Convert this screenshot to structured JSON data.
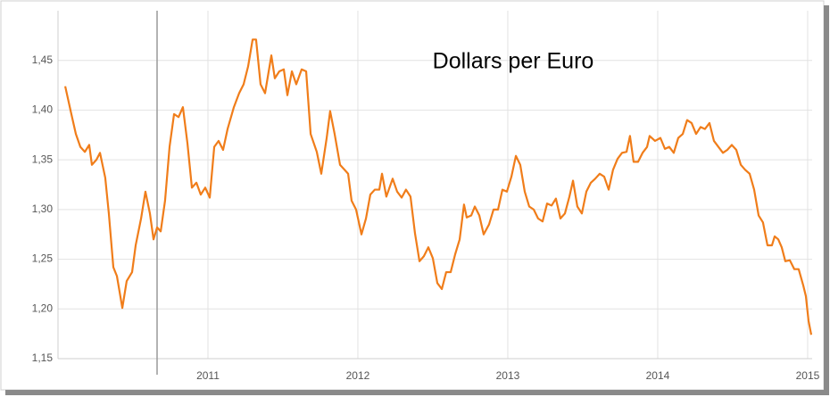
{
  "chart_data": {
    "type": "line",
    "title": "Dollars per Euro",
    "color": "#f07d1a",
    "grid": true,
    "xlim": [
      2010,
      2015.03
    ],
    "ylim": [
      1.15,
      1.5
    ],
    "xticks": [
      2011,
      2012,
      2013,
      2014,
      2015
    ],
    "yticks": [
      {
        "value": 1.15,
        "label": "1,15"
      },
      {
        "value": 1.2,
        "label": "1,20"
      },
      {
        "value": 1.25,
        "label": "1,25"
      },
      {
        "value": 1.3,
        "label": "1,30"
      },
      {
        "value": 1.35,
        "label": "1,35"
      },
      {
        "value": 1.4,
        "label": "1,40"
      },
      {
        "value": 1.45,
        "label": "1,45"
      }
    ],
    "x": [
      2010.048,
      2010.089,
      2010.119,
      2010.149,
      2010.179,
      2010.208,
      2010.226,
      2010.256,
      2010.28,
      2010.315,
      2010.339,
      2010.369,
      2010.393,
      2010.429,
      2010.458,
      2010.494,
      2010.518,
      2010.554,
      2010.583,
      2010.613,
      2010.637,
      2010.661,
      2010.685,
      2010.714,
      2010.744,
      2010.774,
      2010.804,
      2010.833,
      2010.863,
      2010.893,
      2010.923,
      2010.952,
      2010.982,
      2011.012,
      2011.042,
      2011.071,
      2011.101,
      2011.131,
      2011.173,
      2011.208,
      2011.238,
      2011.268,
      2011.298,
      2011.321,
      2011.351,
      2011.381,
      2011.423,
      2011.446,
      2011.476,
      2011.506,
      2011.53,
      2011.56,
      2011.589,
      2011.625,
      2011.655,
      2011.685,
      2011.726,
      2011.756,
      2011.792,
      2011.815,
      2011.845,
      2011.881,
      2011.911,
      2011.935,
      2011.958,
      2011.988,
      2012.024,
      2012.054,
      2012.083,
      2012.113,
      2012.143,
      2012.161,
      2012.19,
      2012.232,
      2012.262,
      2012.292,
      2012.321,
      2012.351,
      2012.381,
      2012.411,
      2012.44,
      2012.47,
      2012.5,
      2012.53,
      2012.56,
      2012.589,
      2012.619,
      2012.649,
      2012.679,
      2012.708,
      2012.726,
      2012.756,
      2012.78,
      2012.81,
      2012.839,
      2012.875,
      2012.905,
      2012.935,
      2012.964,
      2012.994,
      2013.024,
      2013.054,
      2013.083,
      2013.113,
      2013.143,
      2013.173,
      2013.202,
      2013.232,
      2013.262,
      2013.292,
      2013.321,
      2013.351,
      2013.381,
      2013.411,
      2013.435,
      2013.464,
      2013.494,
      2013.524,
      2013.554,
      2013.583,
      2013.613,
      2013.643,
      2013.673,
      2013.702,
      2013.732,
      2013.762,
      2013.792,
      2013.815,
      2013.839,
      2013.869,
      2013.899,
      2013.929,
      2013.946,
      2013.982,
      2014.018,
      2014.048,
      2014.077,
      2014.107,
      2014.137,
      2014.167,
      2014.196,
      2014.226,
      2014.256,
      2014.286,
      2014.315,
      2014.345,
      2014.375,
      2014.405,
      2014.435,
      2014.464,
      2014.494,
      2014.524,
      2014.554,
      2014.583,
      2014.613,
      2014.643,
      2014.673,
      2014.702,
      2014.732,
      2014.762,
      2014.78,
      2014.804,
      2014.827,
      2014.851,
      2014.881,
      2014.911,
      2014.94,
      2014.97,
      2014.988,
      2015.006,
      2015.024
    ],
    "values": [
      1.424,
      1.396,
      1.376,
      1.363,
      1.358,
      1.365,
      1.345,
      1.35,
      1.357,
      1.332,
      1.296,
      1.242,
      1.233,
      1.201,
      1.228,
      1.237,
      1.264,
      1.291,
      1.318,
      1.296,
      1.27,
      1.282,
      1.278,
      1.309,
      1.363,
      1.396,
      1.393,
      1.403,
      1.367,
      1.322,
      1.327,
      1.315,
      1.322,
      1.312,
      1.363,
      1.369,
      1.36,
      1.381,
      1.403,
      1.417,
      1.426,
      1.444,
      1.471,
      1.471,
      1.426,
      1.417,
      1.455,
      1.432,
      1.439,
      1.441,
      1.415,
      1.439,
      1.426,
      1.441,
      1.439,
      1.376,
      1.358,
      1.336,
      1.372,
      1.399,
      1.376,
      1.345,
      1.34,
      1.336,
      1.309,
      1.3,
      1.275,
      1.291,
      1.315,
      1.32,
      1.32,
      1.336,
      1.313,
      1.331,
      1.318,
      1.312,
      1.32,
      1.313,
      1.276,
      1.248,
      1.253,
      1.262,
      1.251,
      1.226,
      1.22,
      1.237,
      1.237,
      1.255,
      1.27,
      1.305,
      1.292,
      1.294,
      1.303,
      1.294,
      1.275,
      1.285,
      1.3,
      1.3,
      1.32,
      1.318,
      1.333,
      1.354,
      1.345,
      1.318,
      1.303,
      1.3,
      1.291,
      1.288,
      1.306,
      1.304,
      1.311,
      1.291,
      1.296,
      1.313,
      1.329,
      1.303,
      1.296,
      1.318,
      1.327,
      1.331,
      1.336,
      1.333,
      1.32,
      1.34,
      1.351,
      1.357,
      1.358,
      1.374,
      1.348,
      1.348,
      1.357,
      1.363,
      1.374,
      1.369,
      1.372,
      1.361,
      1.363,
      1.357,
      1.372,
      1.376,
      1.39,
      1.387,
      1.376,
      1.383,
      1.381,
      1.387,
      1.369,
      1.363,
      1.357,
      1.36,
      1.365,
      1.36,
      1.345,
      1.34,
      1.336,
      1.32,
      1.294,
      1.287,
      1.264,
      1.264,
      1.273,
      1.27,
      1.262,
      1.248,
      1.249,
      1.24,
      1.24,
      1.224,
      1.213,
      1.188,
      1.174
    ]
  }
}
